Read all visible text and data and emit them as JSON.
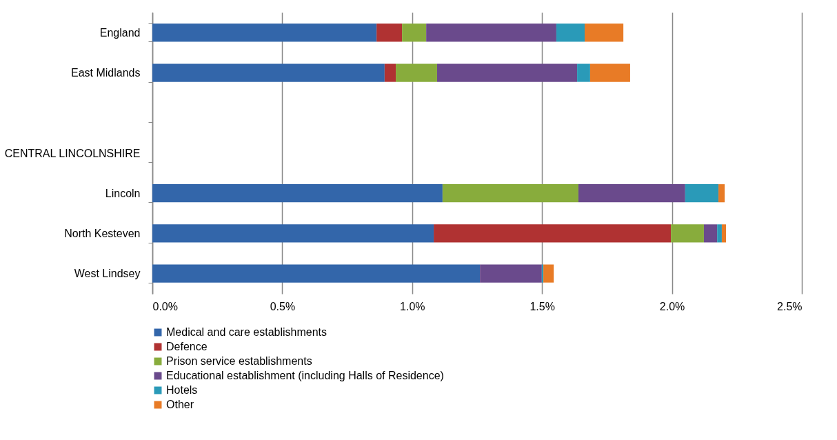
{
  "chart_data": {
    "type": "bar",
    "orientation": "horizontal",
    "stacked": true,
    "categories": [
      "England",
      "East Midlands",
      null,
      "CENTRAL LINCOLNSHIRE",
      "Lincoln",
      "North Kesteven",
      "West Lindsey"
    ],
    "series": [
      {
        "name": "Medical and care establishments",
        "color": "#3366aa",
        "values": [
          0.863,
          0.894,
          null,
          null,
          1.117,
          1.083,
          1.261
        ]
      },
      {
        "name": "Defence",
        "color": "#b03232",
        "values": [
          0.098,
          0.043,
          null,
          null,
          0,
          0.913,
          0
        ]
      },
      {
        "name": "Prison service establishments",
        "color": "#88ac3c",
        "values": [
          0.093,
          0.159,
          null,
          null,
          0.523,
          0.127,
          0
        ]
      },
      {
        "name": "Educational establishment (including Halls of Residence)",
        "color": "#6a4a8c",
        "values": [
          0.501,
          0.539,
          null,
          null,
          0.411,
          0.051,
          0.238
        ]
      },
      {
        "name": "Hotels",
        "color": "#2a9ab8",
        "values": [
          0.109,
          0.05,
          null,
          null,
          0.128,
          0.018,
          0.006
        ]
      },
      {
        "name": "Other",
        "color": "#e87b26",
        "values": [
          0.149,
          0.154,
          null,
          null,
          0.024,
          0.016,
          0.04
        ]
      }
    ],
    "xlim": [
      0,
      2.5
    ],
    "xticks": [
      {
        "value": 0,
        "label": "0.0%"
      },
      {
        "value": 0.5,
        "label": "0.5%"
      },
      {
        "value": 1,
        "label": "1.0%"
      },
      {
        "value": 1.5,
        "label": "1.5%"
      },
      {
        "value": 2,
        "label": "2.0%"
      },
      {
        "value": 2.5,
        "label": "2.5%"
      }
    ],
    "grid": "x",
    "legend": "bottom"
  }
}
